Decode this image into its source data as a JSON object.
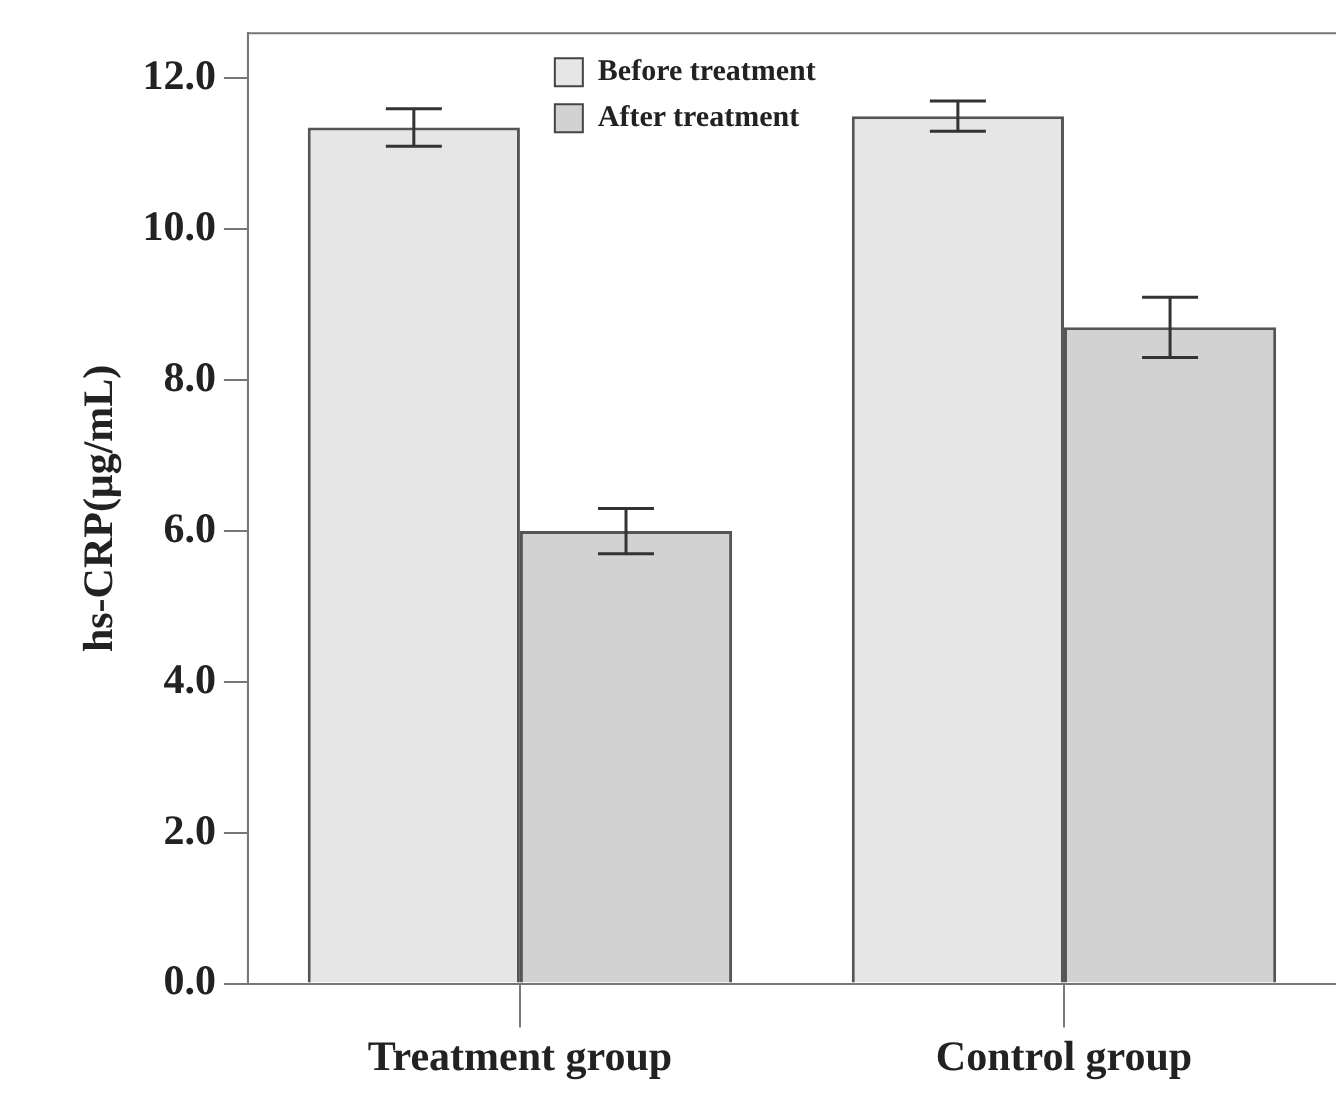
{
  "chart_data": {
    "type": "bar",
    "ylabel": "hs-CRP(μg/mL)",
    "categories": [
      "Treatment group",
      "Control group"
    ],
    "series": [
      {
        "name": "Before treatment",
        "color": "#e6e6e6",
        "values": [
          11.35,
          11.5
        ],
        "errors": [
          0.25,
          0.2
        ]
      },
      {
        "name": "After treatment",
        "color": "#d2d2d2",
        "values": [
          6.0,
          8.7
        ],
        "errors": [
          0.3,
          0.4
        ]
      }
    ],
    "ylim": [
      0,
      12.6
    ],
    "yticks": [
      {
        "value": 0,
        "label": "0.0"
      },
      {
        "value": 2,
        "label": "2.0"
      },
      {
        "value": 4,
        "label": "4.0"
      },
      {
        "value": 6,
        "label": "6.0"
      },
      {
        "value": 8,
        "label": "8.0"
      },
      {
        "value": 10,
        "label": "10.0"
      },
      {
        "value": 12,
        "label": "12.0"
      }
    ],
    "grid": false,
    "legend": "top"
  }
}
